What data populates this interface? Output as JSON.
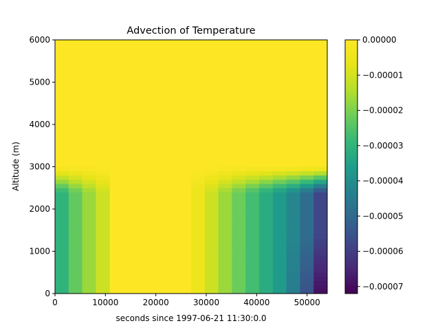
{
  "chart_data": {
    "type": "heatmap",
    "title": "Advection of Temperature",
    "xlabel": "seconds since 1997-06-21 11:30:0.0",
    "ylabel": "Altitude (m)",
    "xlim": [
      0,
      54000
    ],
    "ylim": [
      0,
      6000
    ],
    "xticks": [
      0,
      10000,
      20000,
      30000,
      40000,
      50000
    ],
    "yticks": [
      0,
      1000,
      2000,
      3000,
      4000,
      5000,
      6000
    ],
    "x_tick_labels": [
      "0",
      "10000",
      "20000",
      "30000",
      "40000",
      "50000"
    ],
    "y_tick_labels": [
      "0",
      "1000",
      "2000",
      "3000",
      "4000",
      "5000",
      "6000"
    ],
    "colormap": "viridis",
    "grid": false,
    "colorbar": {
      "vmin": -7.2e-05,
      "vmax": 0.0,
      "ticks": [
        0.0,
        -1e-05,
        -2e-05,
        -3e-05,
        -4e-05,
        -5e-05,
        -6e-05,
        -7e-05
      ],
      "tick_labels": [
        "0.00000",
        "−0.00001",
        "−0.00002",
        "−0.00003",
        "−0.00004",
        "−0.00005",
        "−0.00006",
        "−0.00007"
      ]
    },
    "column_time_step": 2700,
    "column_base_values": [
      -3e-05,
      -2.3e-05,
      -1.7e-05,
      -1.1e-05,
      0.0,
      0.0,
      0.0,
      0.0,
      0.0,
      0.0,
      -5e-06,
      -1.1e-05,
      -1.7e-05,
      -2.2e-05,
      -2.7e-05,
      -3.2e-05,
      -3.7e-05,
      -4.2e-05,
      -4.9e-05,
      -5.8e-05
    ],
    "profile_top_altitude": 3000,
    "surface_intensification": {
      "from_column": 17,
      "below_altitude": 1400,
      "factor": 1.2
    }
  }
}
